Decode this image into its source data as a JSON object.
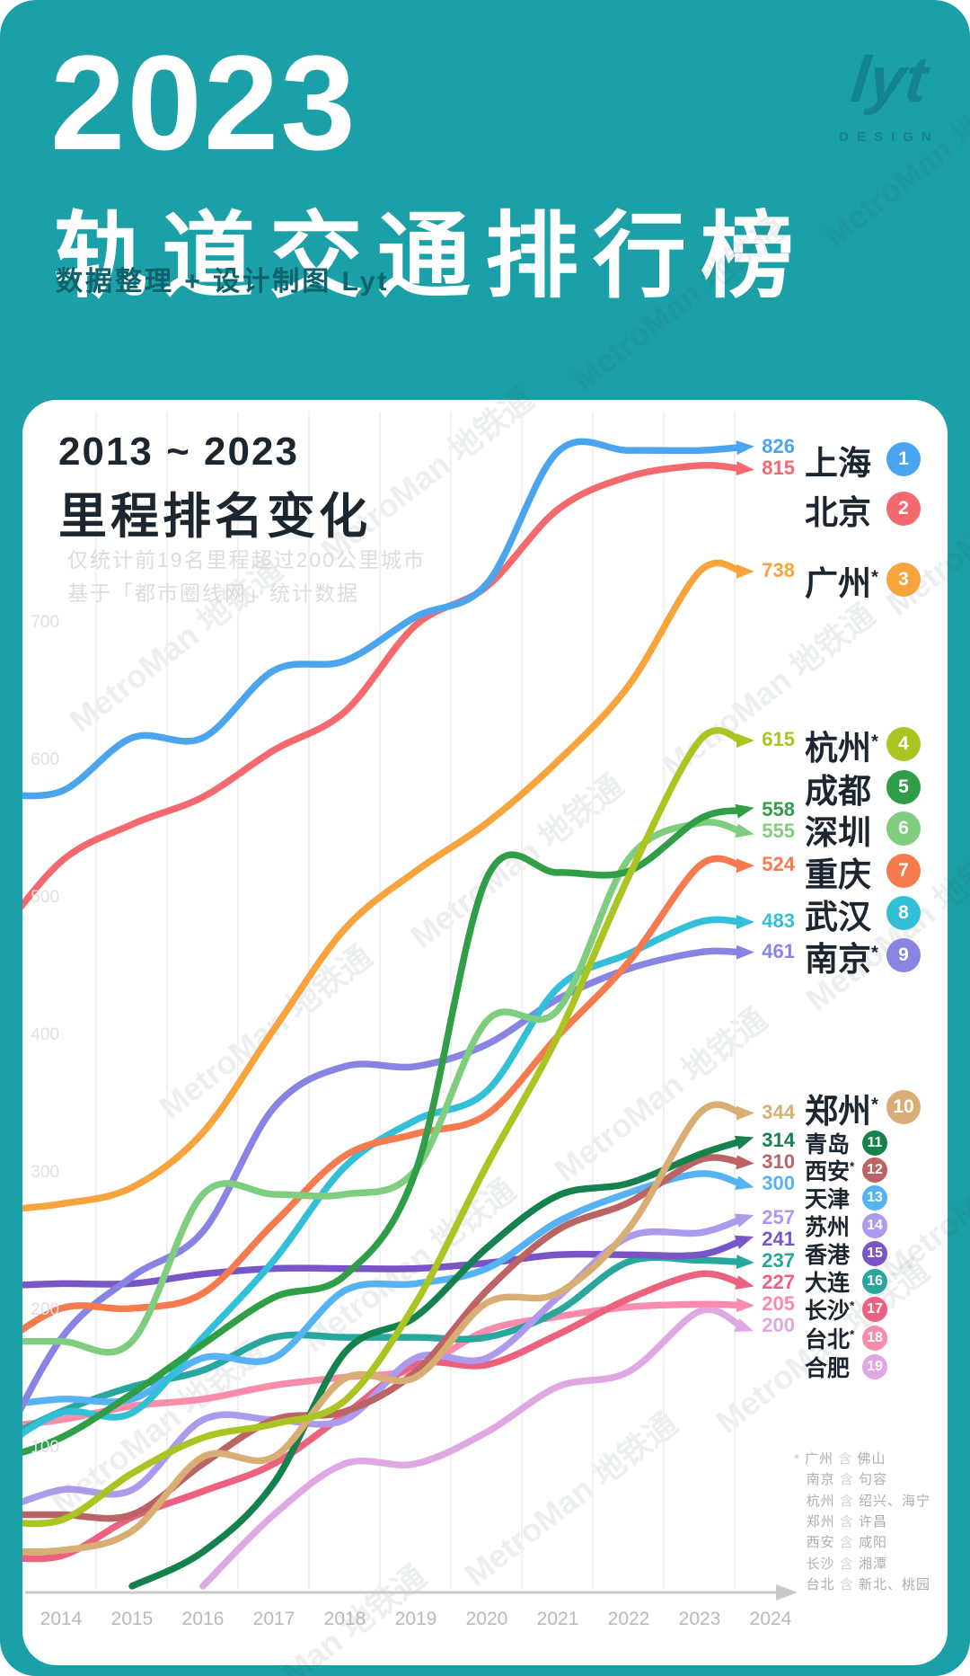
{
  "header": {
    "year": "2023",
    "title": "轨道交通排行榜",
    "subtitle": "数据整理 + 设计制图 Lyt",
    "logo_text": "lyt",
    "logo_sub": "DESIGN"
  },
  "card": {
    "title_range": "2013 ~ 2023",
    "title_main": "里程排名变化",
    "notes": [
      "仅统计前19名里程超过200公里城市",
      "基于「都市圈线网」统计数据"
    ],
    "footnotes": [
      {
        "star": "*",
        "city": "广州",
        "conj": "含",
        "extra": "佛山"
      },
      {
        "star": "",
        "city": "南京",
        "conj": "含",
        "extra": "句容"
      },
      {
        "star": "",
        "city": "杭州",
        "conj": "含",
        "extra": "绍兴、海宁"
      },
      {
        "star": "",
        "city": "郑州",
        "conj": "含",
        "extra": "许昌"
      },
      {
        "star": "",
        "city": "西安",
        "conj": "含",
        "extra": "咸阳"
      },
      {
        "star": "",
        "city": "长沙",
        "conj": "含",
        "extra": "湘潭"
      },
      {
        "star": "",
        "city": "台北",
        "conj": "含",
        "extra": "新北、桃园"
      }
    ]
  },
  "watermark": "MetroMan 地铁通",
  "chart_data": {
    "type": "line",
    "title": "2013 ~ 2023 里程排名变化",
    "x": [
      2013,
      2014,
      2015,
      2016,
      2017,
      2018,
      2019,
      2020,
      2021,
      2022,
      2023
    ],
    "x_axis_ticks": [
      "2014",
      "2015",
      "2016",
      "2017",
      "2018",
      "2019",
      "2020",
      "2021",
      "2022",
      "2023",
      "2024"
    ],
    "y_ticks": [
      700,
      600,
      500,
      400,
      300,
      200,
      100
    ],
    "ylim": [
      0,
      870
    ],
    "grid": "vertical-faint",
    "legend_position": "right",
    "series": [
      {
        "rank": 1,
        "city": "上海",
        "star": false,
        "color": "#4AA5EE",
        "final": 826,
        "values": [
          577,
          578,
          617,
          617,
          666,
          673,
          705,
          729,
          825,
          826,
          826
        ]
      },
      {
        "rank": 2,
        "city": "北京",
        "star": false,
        "color": "#F3696E",
        "final": 815,
        "values": [
          465,
          527,
          554,
          574,
          608,
          636,
          699,
          727,
          783,
          807,
          815
        ]
      },
      {
        "rank": 3,
        "city": "广州",
        "star": true,
        "color": "#F8A43C",
        "final": 738,
        "values": [
          273,
          278,
          290,
          330,
          405,
          478,
          520,
          555,
          600,
          655,
          738
        ]
      },
      {
        "rank": 4,
        "city": "杭州",
        "star": true,
        "color": "#ACC421",
        "final": 615,
        "values": [
          48,
          48,
          82,
          108,
          118,
          135,
          206,
          306,
          400,
          516,
          615
        ]
      },
      {
        "rank": 5,
        "city": "成都",
        "star": false,
        "color": "#2F9E47",
        "final": 558,
        "values": [
          90,
          108,
          140,
          176,
          210,
          226,
          302,
          515,
          519,
          520,
          558
        ]
      },
      {
        "rank": 6,
        "city": "深圳",
        "star": false,
        "color": "#7FCE80",
        "final": 555,
        "values": [
          178,
          178,
          178,
          285,
          285,
          285,
          303,
          411,
          419,
          529,
          555
        ]
      },
      {
        "rank": 7,
        "city": "重庆",
        "star": false,
        "color": "#F57B4E",
        "final": 524,
        "values": [
          170,
          202,
          202,
          213,
          264,
          313,
          329,
          343,
          400,
          454,
          524
        ]
      },
      {
        "rank": 8,
        "city": "武汉",
        "star": false,
        "color": "#32BFD8",
        "final": 483,
        "values": [
          95,
          126,
          126,
          181,
          237,
          305,
          339,
          360,
          435,
          460,
          483
        ]
      },
      {
        "rank": 9,
        "city": "南京",
        "star": true,
        "color": "#8784E4",
        "final": 461,
        "values": [
          85,
          180,
          225,
          258,
          348,
          378,
          378,
          394,
          427,
          449,
          461
        ]
      },
      {
        "rank": 10,
        "city": "郑州",
        "star": true,
        "color": "#D9AE74",
        "final": 344,
        "values": [
          26,
          26,
          40,
          94,
          94,
          151,
          152,
          206,
          213,
          260,
          344
        ]
      },
      {
        "rank": 11,
        "city": "青岛",
        "star": false,
        "color": "#15824E",
        "final": 314,
        "values": [
          null,
          null,
          0,
          25,
          75,
          170,
          196,
          246,
          284,
          293,
          314
        ]
      },
      {
        "rank": 12,
        "city": "西安",
        "star": true,
        "color": "#BB6365",
        "final": 310,
        "values": [
          52,
          52,
          52,
          89,
          121,
          127,
          156,
          215,
          259,
          279,
          310
        ]
      },
      {
        "rank": 13,
        "city": "天津",
        "star": false,
        "color": "#55B3F3",
        "final": 300,
        "values": [
          130,
          136,
          136,
          166,
          166,
          215,
          220,
          231,
          265,
          286,
          300
        ]
      },
      {
        "rank": 14,
        "city": "苏州",
        "star": false,
        "color": "#AE9AEC",
        "final": 257,
        "values": [
          52,
          70,
          70,
          121,
          121,
          121,
          166,
          166,
          210,
          254,
          257
        ]
      },
      {
        "rank": 15,
        "city": "香港",
        "star": false,
        "color": "#7A55C7",
        "final": 241,
        "values": [
          218,
          220,
          220,
          227,
          231,
          231,
          231,
          235,
          241,
          241,
          241
        ]
      },
      {
        "rank": 16,
        "city": "大连",
        "star": false,
        "color": "#28A79E",
        "final": 237,
        "values": [
          102,
          127,
          145,
          157,
          181,
          181,
          181,
          181,
          200,
          236,
          237
        ]
      },
      {
        "rank": 17,
        "city": "长沙",
        "star": true,
        "color": "#EB617E",
        "final": 227,
        "values": [
          22,
          22,
          50,
          69,
          89,
          125,
          161,
          161,
          183,
          209,
          227
        ]
      },
      {
        "rank": 18,
        "city": "台北",
        "star": true,
        "color": "#F78CAB",
        "final": 205,
        "values": [
          115,
          121,
          131,
          136,
          146,
          152,
          158,
          186,
          196,
          203,
          205
        ]
      },
      {
        "rank": 19,
        "city": "合肥",
        "star": false,
        "color": "#DFA8E2",
        "final": 200,
        "values": [
          null,
          null,
          null,
          0,
          52,
          89,
          89,
          112,
          145,
          156,
          200
        ]
      }
    ]
  }
}
